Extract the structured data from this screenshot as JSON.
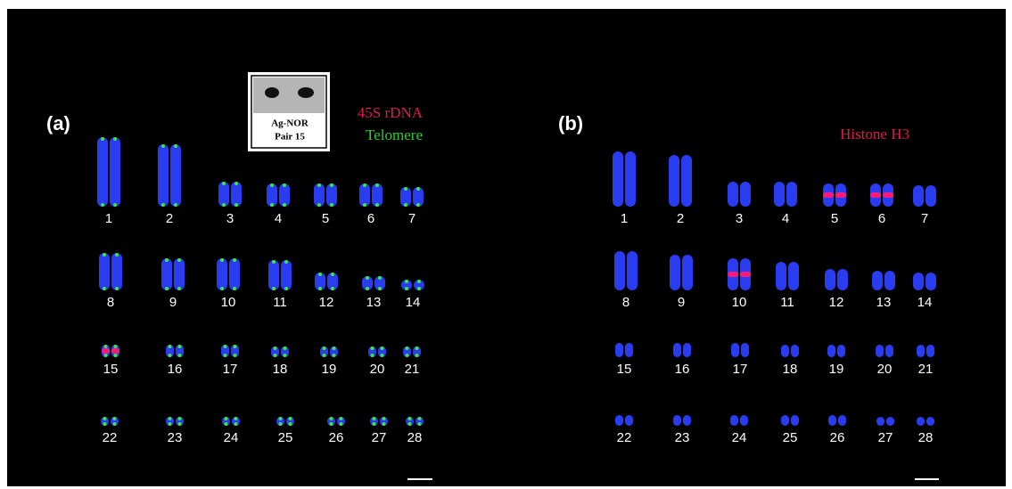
{
  "panels": [
    {
      "label": "(a)",
      "legend": [
        {
          "text": "45S rDNA"
        },
        {
          "text": "Telomere"
        }
      ],
      "inset": {
        "lines": [
          "Ag-NOR",
          "Pair 15"
        ]
      },
      "chromosome_labels": [
        "1",
        "2",
        "3",
        "4",
        "5",
        "6",
        "7",
        "8",
        "9",
        "10",
        "11",
        "12",
        "13",
        "14",
        "15",
        "16",
        "17",
        "18",
        "19",
        "20",
        "21",
        "22",
        "23",
        "24",
        "25",
        "26",
        "27",
        "28"
      ]
    },
    {
      "label": "(b)",
      "legend": [
        {
          "text": "Histone H3"
        }
      ],
      "chromosome_labels": [
        "1",
        "2",
        "3",
        "4",
        "5",
        "6",
        "7",
        "8",
        "9",
        "10",
        "11",
        "12",
        "13",
        "14",
        "15",
        "16",
        "17",
        "18",
        "19",
        "20",
        "21",
        "22",
        "23",
        "24",
        "25",
        "26",
        "27",
        "28"
      ]
    }
  ]
}
